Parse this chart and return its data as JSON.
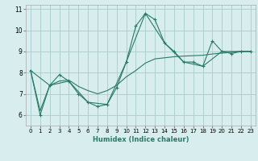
{
  "xlabel": "Humidex (Indice chaleur)",
  "ylabel": "",
  "bg_color": "#d8eeee",
  "grid_color": "#aacccc",
  "line_color": "#2a7a6a",
  "xlim": [
    -0.5,
    23.5
  ],
  "ylim": [
    5.5,
    11.2
  ],
  "xticks": [
    0,
    1,
    2,
    3,
    4,
    5,
    6,
    7,
    8,
    9,
    10,
    11,
    12,
    13,
    14,
    15,
    16,
    17,
    18,
    19,
    20,
    21,
    22,
    23
  ],
  "yticks": [
    6,
    7,
    8,
    9,
    10,
    11
  ],
  "line1_x": [
    0,
    1,
    2,
    3,
    4,
    5,
    6,
    7,
    8,
    9,
    10,
    11,
    12,
    13,
    14,
    15,
    16,
    17,
    18,
    19,
    20,
    21,
    22,
    23
  ],
  "line1_y": [
    8.1,
    6.0,
    7.4,
    7.9,
    7.6,
    7.0,
    6.6,
    6.4,
    6.5,
    7.3,
    8.5,
    10.2,
    10.8,
    10.5,
    9.4,
    9.0,
    8.5,
    8.5,
    8.3,
    9.5,
    9.0,
    8.9,
    9.0,
    9.0
  ],
  "line2_x": [
    0,
    1,
    2,
    3,
    4,
    5,
    6,
    7,
    8,
    9,
    10,
    11,
    12,
    13,
    14,
    15,
    16,
    17,
    18,
    19,
    20,
    21,
    22,
    23
  ],
  "line2_y": [
    8.1,
    6.2,
    7.4,
    7.6,
    7.65,
    7.35,
    7.15,
    7.0,
    7.15,
    7.4,
    7.8,
    8.1,
    8.45,
    8.65,
    8.7,
    8.75,
    8.78,
    8.8,
    8.82,
    8.88,
    8.92,
    8.96,
    9.0,
    9.0
  ],
  "line3_x": [
    0,
    2,
    4,
    6,
    8,
    10,
    12,
    14,
    16,
    18,
    20,
    22,
    23
  ],
  "line3_y": [
    8.1,
    7.4,
    7.6,
    6.6,
    6.5,
    8.5,
    10.8,
    9.4,
    8.5,
    8.3,
    9.0,
    9.0,
    9.0
  ]
}
